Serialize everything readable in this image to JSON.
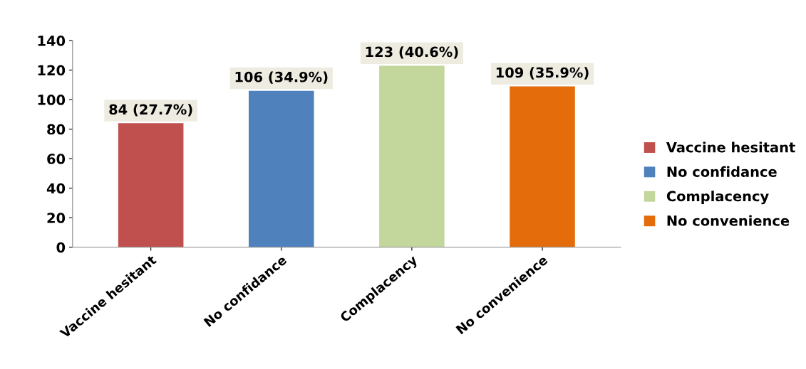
{
  "chart_data": {
    "type": "bar",
    "categories": [
      "Vaccine hesitant",
      "No confidance",
      "Complacency",
      "No convenience"
    ],
    "series": [
      {
        "name": "Vaccine hesitant",
        "color": "#c0504d",
        "values": [
          84,
          null,
          null,
          null
        ],
        "value_labels": [
          "84 (27.7%)",
          null,
          null,
          null
        ]
      },
      {
        "name": "No confidance",
        "color": "#4f81bd",
        "values": [
          null,
          106,
          null,
          null
        ],
        "value_labels": [
          null,
          "106 (34.9%)",
          null,
          null
        ]
      },
      {
        "name": "Complacency",
        "color": "#c3d69b",
        "values": [
          null,
          null,
          123,
          null
        ],
        "value_labels": [
          null,
          null,
          "123 (40.6%)",
          null
        ]
      },
      {
        "name": "No convenience",
        "color": "#e46c0a",
        "values": [
          null,
          null,
          null,
          109
        ],
        "value_labels": [
          null,
          null,
          null,
          "109 (35.9%)"
        ]
      }
    ],
    "ylim": [
      0,
      140
    ],
    "yticks": [
      0,
      20,
      40,
      60,
      80,
      100,
      120,
      140
    ],
    "grid": false,
    "legend": "right"
  }
}
